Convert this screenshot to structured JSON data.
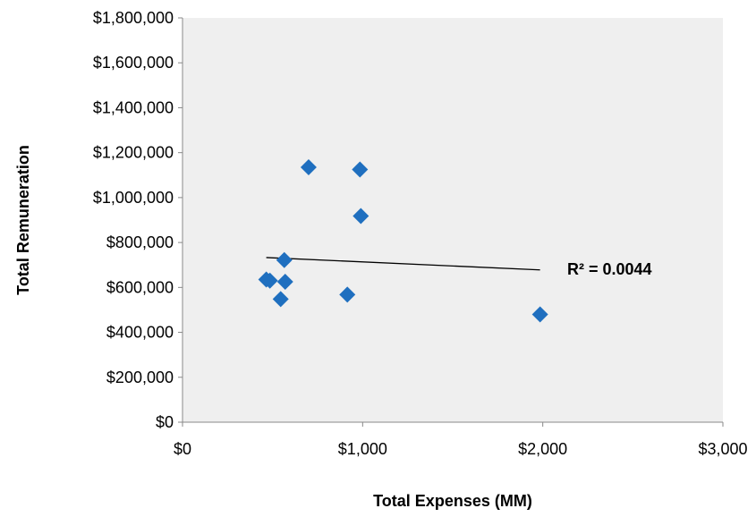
{
  "chart_data": {
    "type": "scatter",
    "title": "",
    "xlabel": "Total Expenses (MM)",
    "ylabel": "Total Remuneration",
    "xlim": [
      0,
      3000
    ],
    "ylim": [
      0,
      1800000
    ],
    "x_ticks": [
      0,
      1000,
      2000,
      3000
    ],
    "x_tick_labels": [
      "$0",
      "$1,000",
      "$2,000",
      "$3,000"
    ],
    "y_ticks": [
      0,
      200000,
      400000,
      600000,
      800000,
      1000000,
      1200000,
      1400000,
      1600000,
      1800000
    ],
    "y_tick_labels": [
      "$0",
      "$200,000",
      "$400,000",
      "$600,000",
      "$800,000",
      "$1,000,000",
      "$1,200,000",
      "$1,400,000",
      "$1,600,000",
      "$1,800,000"
    ],
    "grid": false,
    "legend": "none",
    "series": [
      {
        "marker": "diamond",
        "color": "#1f6fbf",
        "points": [
          {
            "x": 465,
            "y": 635000
          },
          {
            "x": 485,
            "y": 630000
          },
          {
            "x": 545,
            "y": 548000
          },
          {
            "x": 565,
            "y": 722000
          },
          {
            "x": 570,
            "y": 625000
          },
          {
            "x": 700,
            "y": 1135000
          },
          {
            "x": 915,
            "y": 568000
          },
          {
            "x": 985,
            "y": 1125000
          },
          {
            "x": 990,
            "y": 918000
          },
          {
            "x": 1985,
            "y": 480000
          }
        ]
      }
    ],
    "trendline": {
      "type": "linear",
      "x_start": 465,
      "y_start": 733000,
      "x_end": 1985,
      "y_end": 678000,
      "color": "#000000",
      "label": "R² = 0.0044"
    },
    "plot_background": "#efefef",
    "axis_color": "#888888"
  }
}
